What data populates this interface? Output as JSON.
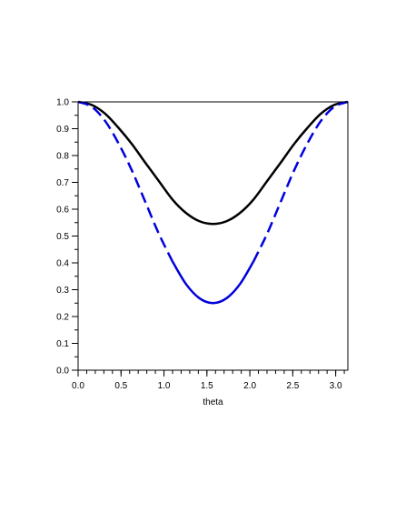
{
  "chart_data": {
    "type": "line",
    "xlabel": "theta",
    "ylabel": "",
    "title": "",
    "xlim": [
      0,
      3.14159
    ],
    "ylim": [
      0,
      1.0
    ],
    "x_ticks": [
      0.0,
      0.5,
      1.0,
      1.5,
      2.0,
      2.5,
      3.0
    ],
    "x_tick_labels": [
      "0.0",
      "0.5",
      "1.0",
      "1.5",
      "2.0",
      "2.5",
      "3.0"
    ],
    "y_ticks": [
      0.0,
      0.1,
      0.2,
      0.3,
      0.4,
      0.5,
      0.6,
      0.7,
      0.8,
      0.9,
      1.0
    ],
    "y_tick_labels": [
      "0.0",
      "0.1",
      "0.2",
      "0.3",
      "0.4",
      "0.5",
      "0.6",
      "0.7",
      "0.8",
      "0.9",
      "1.0"
    ],
    "grid": false,
    "legend": "none",
    "x": [
      0.0,
      0.1571,
      0.3142,
      0.4712,
      0.6283,
      0.7854,
      0.9425,
      1.0996,
      1.2566,
      1.4137,
      1.5708,
      1.7279,
      1.885,
      2.042,
      2.1991,
      2.3562,
      2.5133,
      2.6704,
      2.8274,
      2.9845,
      3.1416
    ],
    "series": [
      {
        "color": "#000000",
        "style": "solid",
        "values": [
          1.0,
          0.989,
          0.956,
          0.903,
          0.842,
          0.772,
          0.704,
          0.636,
          0.586,
          0.555,
          0.545,
          0.555,
          0.586,
          0.636,
          0.704,
          0.772,
          0.842,
          0.903,
          0.956,
          0.989,
          1.0
        ]
      },
      {
        "color": "#0000dd",
        "style": "dashed-ends-solid-middle",
        "values": [
          1.0,
          0.982,
          0.929,
          0.845,
          0.743,
          0.625,
          0.507,
          0.405,
          0.321,
          0.268,
          0.25,
          0.268,
          0.321,
          0.405,
          0.507,
          0.625,
          0.743,
          0.845,
          0.929,
          0.982,
          1.0
        ]
      }
    ]
  }
}
